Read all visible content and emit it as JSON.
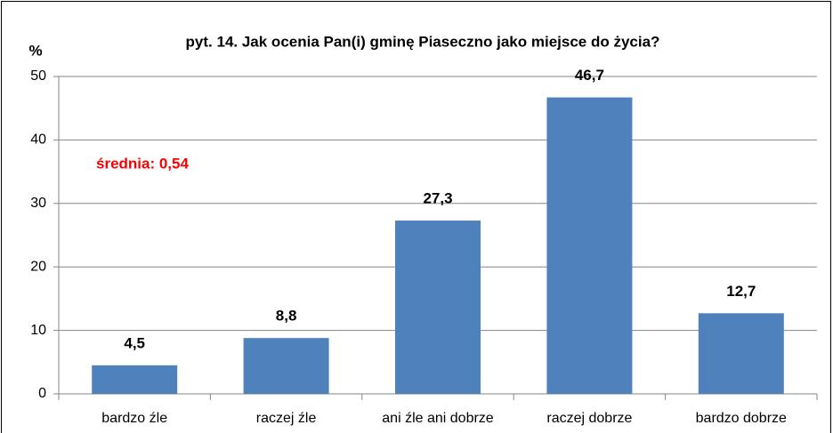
{
  "chart_data": {
    "type": "bar",
    "title": "pyt. 14. Jak ocenia Pan(i)  gminę Piaseczno jako miejsce do życia?",
    "y_label": "%",
    "annotation": "średnia: 0,54",
    "categories": [
      "bardzo źle",
      "raczej źle",
      "ani źle ani dobrze",
      "raczej dobrze",
      "bardzo dobrze"
    ],
    "values": [
      4.5,
      8.8,
      27.3,
      46.7,
      12.7
    ],
    "value_labels": [
      "4,5",
      "8,8",
      "27,3",
      "46,7",
      "12,7"
    ],
    "color": "#4f81bd",
    "ylim": [
      0,
      50
    ],
    "yticks": [
      0,
      10,
      20,
      30,
      40,
      50
    ],
    "grid": true
  }
}
